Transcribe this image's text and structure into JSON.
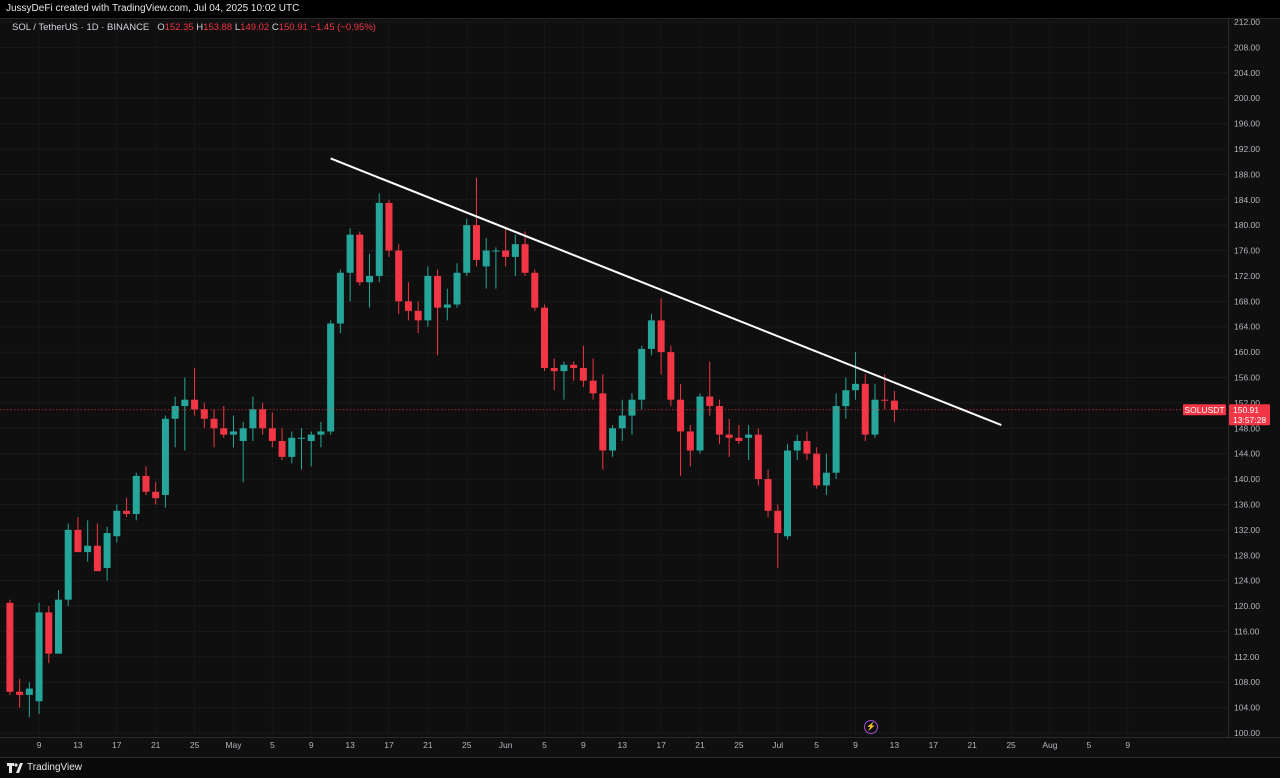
{
  "header": {
    "attribution": "JussyDeFi created with TradingView.com, Jul 04, 2025 10:02 UTC"
  },
  "legend": {
    "symbol": "SOL / TetherUS · 1D · BINANCE",
    "o_label": "O",
    "o_value": "152.35",
    "h_label": "H",
    "h_value": "153.88",
    "l_label": "L",
    "l_value": "149.02",
    "c_label": "C",
    "c_value": "150.91",
    "change": "−1.45 (−0.95%)"
  },
  "price_tag": {
    "symbol": "SOLUSDT",
    "price": "150.91",
    "countdown": "13:57:28"
  },
  "footer": {
    "brand": "TradingView"
  },
  "colors": {
    "up": "#26a69a",
    "down": "#f23645",
    "background": "#0f0f0f",
    "trendline": "#ffffff"
  },
  "icons": {
    "flash": "lightning-icon",
    "logo": "tradingview-logo-icon"
  },
  "chart_data": {
    "type": "candlestick",
    "symbol": "SOLUSDT",
    "interval": "1D",
    "ylim": [
      100,
      212
    ],
    "y_ticks": [
      "212.00",
      "208.00",
      "204.00",
      "200.00",
      "196.00",
      "192.00",
      "188.00",
      "184.00",
      "180.00",
      "176.00",
      "172.00",
      "168.00",
      "164.00",
      "160.00",
      "156.00",
      "152.00",
      "148.00",
      "144.00",
      "140.00",
      "136.00",
      "132.00",
      "128.00",
      "124.00",
      "120.00",
      "116.00",
      "112.00",
      "108.00",
      "104.00",
      "100.00"
    ],
    "x_ticks": [
      "9",
      "13",
      "17",
      "21",
      "25",
      "May",
      "5",
      "9",
      "13",
      "17",
      "21",
      "25",
      "Jun",
      "5",
      "9",
      "13",
      "17",
      "21",
      "25",
      "Jul",
      "5",
      "9",
      "13",
      "17",
      "21",
      "25",
      "Aug",
      "5",
      "9"
    ],
    "last_price": 150.91,
    "candles": [
      {
        "o": 120.5,
        "h": 121.0,
        "l": 106.0,
        "c": 106.5
      },
      {
        "o": 106.5,
        "h": 108.5,
        "l": 104.0,
        "c": 106.0
      },
      {
        "o": 106.0,
        "h": 108.0,
        "l": 102.5,
        "c": 107.0
      },
      {
        "o": 105.0,
        "h": 120.5,
        "l": 103.0,
        "c": 119.0
      },
      {
        "o": 119.0,
        "h": 120.0,
        "l": 111.0,
        "c": 112.5
      },
      {
        "o": 112.5,
        "h": 122.5,
        "l": 112.5,
        "c": 121.0
      },
      {
        "o": 121.0,
        "h": 133.0,
        "l": 120.0,
        "c": 132.0
      },
      {
        "o": 132.0,
        "h": 134.0,
        "l": 128.5,
        "c": 128.5
      },
      {
        "o": 128.5,
        "h": 133.5,
        "l": 127.0,
        "c": 129.5
      },
      {
        "o": 129.5,
        "h": 133.0,
        "l": 125.5,
        "c": 125.5
      },
      {
        "o": 126.0,
        "h": 132.5,
        "l": 124.0,
        "c": 131.5
      },
      {
        "o": 131.0,
        "h": 136.0,
        "l": 130.0,
        "c": 135.0
      },
      {
        "o": 135.0,
        "h": 137.0,
        "l": 134.0,
        "c": 134.5
      },
      {
        "o": 134.5,
        "h": 141.0,
        "l": 133.5,
        "c": 140.5
      },
      {
        "o": 140.5,
        "h": 142.0,
        "l": 137.5,
        "c": 138.0
      },
      {
        "o": 138.0,
        "h": 139.5,
        "l": 136.0,
        "c": 137.0
      },
      {
        "o": 137.5,
        "h": 150.0,
        "l": 135.5,
        "c": 149.5
      },
      {
        "o": 149.5,
        "h": 153.0,
        "l": 145.0,
        "c": 151.5
      },
      {
        "o": 151.5,
        "h": 156.0,
        "l": 144.5,
        "c": 152.5
      },
      {
        "o": 152.5,
        "h": 157.5,
        "l": 150.0,
        "c": 151.0
      },
      {
        "o": 151.0,
        "h": 152.0,
        "l": 148.0,
        "c": 149.5
      },
      {
        "o": 149.5,
        "h": 151.0,
        "l": 145.0,
        "c": 148.0
      },
      {
        "o": 148.0,
        "h": 151.5,
        "l": 146.5,
        "c": 147.0
      },
      {
        "o": 147.0,
        "h": 150.0,
        "l": 145.0,
        "c": 147.5
      },
      {
        "o": 146.0,
        "h": 149.0,
        "l": 139.5,
        "c": 148.0
      },
      {
        "o": 148.0,
        "h": 153.0,
        "l": 146.0,
        "c": 151.0
      },
      {
        "o": 151.0,
        "h": 152.0,
        "l": 147.0,
        "c": 148.0
      },
      {
        "o": 148.0,
        "h": 150.5,
        "l": 145.0,
        "c": 146.0
      },
      {
        "o": 146.0,
        "h": 148.0,
        "l": 143.0,
        "c": 143.5
      },
      {
        "o": 143.5,
        "h": 147.5,
        "l": 142.5,
        "c": 146.5
      },
      {
        "o": 146.5,
        "h": 148.0,
        "l": 141.5,
        "c": 146.5
      },
      {
        "o": 146.0,
        "h": 147.5,
        "l": 142.0,
        "c": 147.0
      },
      {
        "o": 147.0,
        "h": 149.0,
        "l": 145.0,
        "c": 147.5
      },
      {
        "o": 147.5,
        "h": 165.0,
        "l": 147.0,
        "c": 164.5
      },
      {
        "o": 164.5,
        "h": 173.0,
        "l": 163.0,
        "c": 172.5
      },
      {
        "o": 172.5,
        "h": 179.5,
        "l": 168.0,
        "c": 178.5
      },
      {
        "o": 178.5,
        "h": 179.0,
        "l": 170.5,
        "c": 171.0
      },
      {
        "o": 171.0,
        "h": 175.5,
        "l": 167.0,
        "c": 172.0
      },
      {
        "o": 172.0,
        "h": 185.0,
        "l": 171.0,
        "c": 183.5
      },
      {
        "o": 183.5,
        "h": 184.0,
        "l": 175.0,
        "c": 176.0
      },
      {
        "o": 176.0,
        "h": 177.0,
        "l": 166.0,
        "c": 168.0
      },
      {
        "o": 168.0,
        "h": 171.0,
        "l": 165.0,
        "c": 166.5
      },
      {
        "o": 166.5,
        "h": 168.0,
        "l": 163.0,
        "c": 165.0
      },
      {
        "o": 165.0,
        "h": 173.5,
        "l": 164.0,
        "c": 172.0
      },
      {
        "o": 172.0,
        "h": 173.0,
        "l": 159.5,
        "c": 167.0
      },
      {
        "o": 167.0,
        "h": 170.0,
        "l": 165.0,
        "c": 167.5
      },
      {
        "o": 167.5,
        "h": 174.0,
        "l": 167.0,
        "c": 172.5
      },
      {
        "o": 172.5,
        "h": 181.0,
        "l": 172.0,
        "c": 180.0
      },
      {
        "o": 180.0,
        "h": 187.5,
        "l": 173.5,
        "c": 174.5
      },
      {
        "o": 173.5,
        "h": 178.0,
        "l": 170.0,
        "c": 176.0
      },
      {
        "o": 176.0,
        "h": 176.5,
        "l": 170.0,
        "c": 176.0
      },
      {
        "o": 176.0,
        "h": 179.5,
        "l": 173.5,
        "c": 175.0
      },
      {
        "o": 175.0,
        "h": 178.5,
        "l": 172.0,
        "c": 177.0
      },
      {
        "o": 177.0,
        "h": 179.0,
        "l": 172.0,
        "c": 172.5
      },
      {
        "o": 172.5,
        "h": 173.0,
        "l": 166.5,
        "c": 167.0
      },
      {
        "o": 167.0,
        "h": 167.5,
        "l": 157.0,
        "c": 157.5
      },
      {
        "o": 157.5,
        "h": 159.0,
        "l": 154.0,
        "c": 157.0
      },
      {
        "o": 157.0,
        "h": 158.5,
        "l": 152.5,
        "c": 158.0
      },
      {
        "o": 158.0,
        "h": 158.5,
        "l": 155.5,
        "c": 157.5
      },
      {
        "o": 157.5,
        "h": 161.0,
        "l": 154.5,
        "c": 155.5
      },
      {
        "o": 155.5,
        "h": 159.0,
        "l": 152.5,
        "c": 153.5
      },
      {
        "o": 153.5,
        "h": 156.5,
        "l": 141.5,
        "c": 144.5
      },
      {
        "o": 144.5,
        "h": 148.5,
        "l": 143.5,
        "c": 148.0
      },
      {
        "o": 148.0,
        "h": 152.5,
        "l": 146.0,
        "c": 150.0
      },
      {
        "o": 150.0,
        "h": 153.5,
        "l": 147.0,
        "c": 152.5
      },
      {
        "o": 152.5,
        "h": 161.0,
        "l": 151.0,
        "c": 160.5
      },
      {
        "o": 160.5,
        "h": 166.0,
        "l": 159.5,
        "c": 165.0
      },
      {
        "o": 165.0,
        "h": 168.5,
        "l": 156.5,
        "c": 160.0
      },
      {
        "o": 160.0,
        "h": 161.0,
        "l": 151.5,
        "c": 152.5
      },
      {
        "o": 152.5,
        "h": 155.0,
        "l": 140.5,
        "c": 147.5
      },
      {
        "o": 147.5,
        "h": 148.5,
        "l": 142.0,
        "c": 144.5
      },
      {
        "o": 144.5,
        "h": 153.5,
        "l": 144.0,
        "c": 153.0
      },
      {
        "o": 153.0,
        "h": 158.5,
        "l": 150.0,
        "c": 151.5
      },
      {
        "o": 151.5,
        "h": 152.5,
        "l": 145.5,
        "c": 147.0
      },
      {
        "o": 147.0,
        "h": 149.5,
        "l": 143.5,
        "c": 146.5
      },
      {
        "o": 146.5,
        "h": 148.5,
        "l": 145.5,
        "c": 146.0
      },
      {
        "o": 146.5,
        "h": 148.5,
        "l": 143.0,
        "c": 147.0
      },
      {
        "o": 147.0,
        "h": 148.0,
        "l": 139.0,
        "c": 140.0
      },
      {
        "o": 140.0,
        "h": 141.5,
        "l": 134.0,
        "c": 135.0
      },
      {
        "o": 135.0,
        "h": 136.0,
        "l": 126.0,
        "c": 131.5
      },
      {
        "o": 131.0,
        "h": 145.5,
        "l": 130.5,
        "c": 144.5
      },
      {
        "o": 144.5,
        "h": 147.0,
        "l": 143.0,
        "c": 146.0
      },
      {
        "o": 146.0,
        "h": 147.5,
        "l": 143.0,
        "c": 144.0
      },
      {
        "o": 144.0,
        "h": 145.0,
        "l": 138.5,
        "c": 139.0
      },
      {
        "o": 139.0,
        "h": 144.0,
        "l": 137.5,
        "c": 141.0
      },
      {
        "o": 141.0,
        "h": 153.5,
        "l": 140.0,
        "c": 151.5
      },
      {
        "o": 151.5,
        "h": 156.0,
        "l": 149.5,
        "c": 154.0
      },
      {
        "o": 154.0,
        "h": 160.0,
        "l": 152.5,
        "c": 155.0
      },
      {
        "o": 155.0,
        "h": 156.5,
        "l": 146.0,
        "c": 147.0
      },
      {
        "o": 147.0,
        "h": 155.0,
        "l": 146.5,
        "c": 152.5
      },
      {
        "o": 152.5,
        "h": 156.5,
        "l": 151.0,
        "c": 152.35
      },
      {
        "o": 152.35,
        "h": 153.88,
        "l": 149.02,
        "c": 150.91
      }
    ],
    "trendline": {
      "from_index": 33,
      "from_price": 190.5,
      "to_index": 102,
      "to_price": 148.5
    }
  }
}
